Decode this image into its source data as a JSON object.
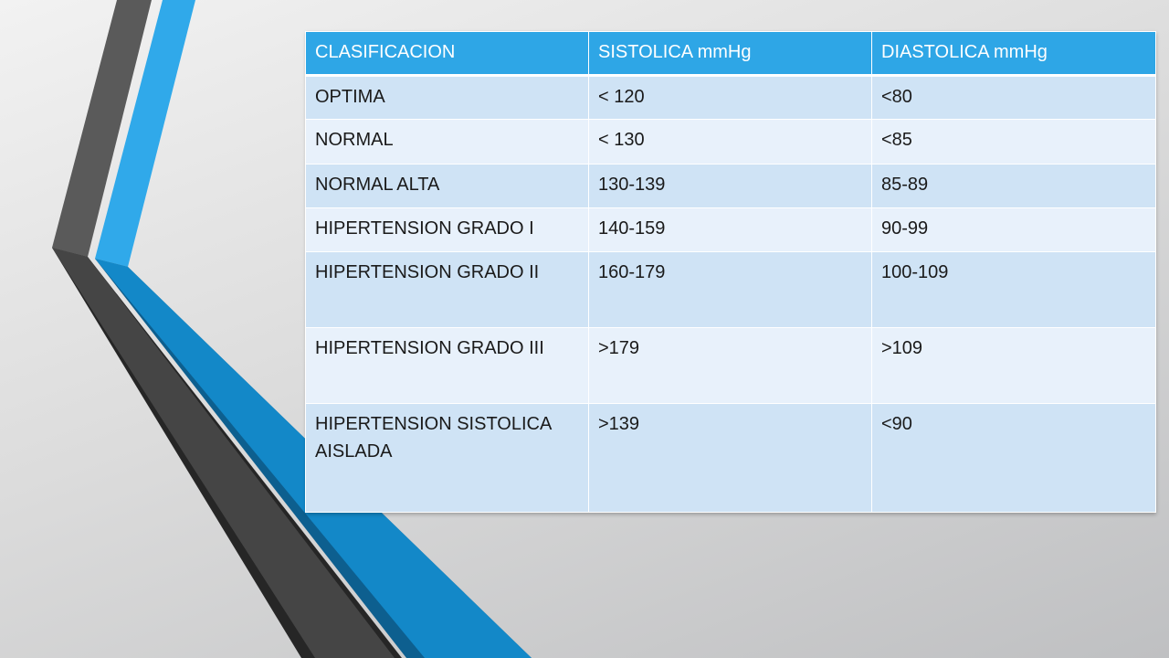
{
  "table": {
    "headers": [
      "CLASIFICACION",
      "SISTOLICA  mmHg",
      "DIASTOLICA mmHg"
    ],
    "rows": [
      [
        "OPTIMA",
        "< 120",
        "<80"
      ],
      [
        "NORMAL",
        "< 130",
        "<85"
      ],
      [
        "NORMAL ALTA",
        "130-139",
        "85-89"
      ],
      [
        "HIPERTENSION GRADO I",
        "140-159",
        "90-99"
      ],
      [
        "HIPERTENSION GRADO II",
        "160-179",
        "100-109"
      ],
      [
        "HIPERTENSION GRADO III",
        ">179",
        ">109"
      ],
      [
        "HIPERTENSION SISTOLICA AISLADA",
        ">139",
        "<90"
      ]
    ]
  },
  "colors": {
    "header_bg": "#2ea6e6",
    "row_dark": "#cfe3f5",
    "row_light": "#e8f1fb",
    "accent_blue": "#1288c9",
    "accent_gray": "#454545"
  }
}
